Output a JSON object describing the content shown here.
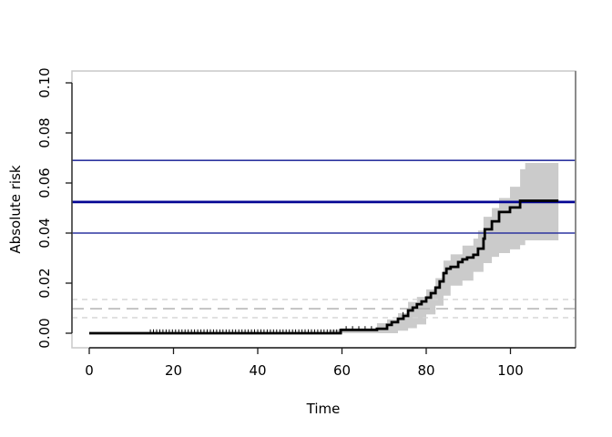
{
  "chart_data": {
    "type": "line",
    "subtype": "step-survival-curve-with-confidence-band",
    "title": "",
    "xlabel": "Time",
    "ylabel": "Absolute risk",
    "xlim": [
      -4.5,
      115.5
    ],
    "ylim": [
      -0.006,
      0.105
    ],
    "grid": "off",
    "x_ticks": [
      {
        "label": "0",
        "value": 0
      },
      {
        "label": "20",
        "value": 20
      },
      {
        "label": "40",
        "value": 40
      },
      {
        "label": "60",
        "value": 60
      },
      {
        "label": "80",
        "value": 80
      },
      {
        "label": "100",
        "value": 100
      }
    ],
    "y_ticks": [
      {
        "label": "0.00",
        "value": 0.0
      },
      {
        "label": "0.02",
        "value": 0.02
      },
      {
        "label": "0.04",
        "value": 0.04
      },
      {
        "label": "0.06",
        "value": 0.06
      },
      {
        "label": "0.08",
        "value": 0.08
      },
      {
        "label": "0.10",
        "value": 0.1
      }
    ],
    "curve": {
      "name": "absolute-risk-step-curve",
      "color": "#000000",
      "width": 2.8,
      "points": [
        [
          0,
          0
        ],
        [
          59.7,
          0.0013
        ],
        [
          68.3,
          0.0018
        ],
        [
          70.7,
          0.0033
        ],
        [
          71.8,
          0.0044
        ],
        [
          73.3,
          0.0058
        ],
        [
          74.6,
          0.0069
        ],
        [
          75.7,
          0.0091
        ],
        [
          76.8,
          0.0102
        ],
        [
          77.8,
          0.0116
        ],
        [
          78.9,
          0.0127
        ],
        [
          80.0,
          0.0142
        ],
        [
          81.1,
          0.016
        ],
        [
          82.2,
          0.0182
        ],
        [
          83.2,
          0.0207
        ],
        [
          84.1,
          0.024
        ],
        [
          84.8,
          0.0258
        ],
        [
          85.8,
          0.0265
        ],
        [
          87.6,
          0.0284
        ],
        [
          88.6,
          0.0295
        ],
        [
          89.7,
          0.0302
        ],
        [
          91.2,
          0.0313
        ],
        [
          92.3,
          0.0338
        ],
        [
          93.6,
          0.0378
        ],
        [
          93.9,
          0.0415
        ],
        [
          95.6,
          0.0447
        ],
        [
          97.3,
          0.0484
        ],
        [
          99.9,
          0.0502
        ],
        [
          102.3,
          0.0529
        ],
        [
          111.4,
          0.0529
        ]
      ]
    },
    "confidence_band": {
      "name": "pointwise-confidence-band",
      "color": "#CBCBCB",
      "upper": [
        [
          57,
          0.0013
        ],
        [
          59.7,
          0.002
        ],
        [
          68.3,
          0.004
        ],
        [
          70.7,
          0.0055
        ],
        [
          73.3,
          0.008
        ],
        [
          75.7,
          0.0125
        ],
        [
          77.8,
          0.0145
        ],
        [
          80,
          0.0175
        ],
        [
          82.2,
          0.022
        ],
        [
          84.1,
          0.029
        ],
        [
          85.8,
          0.0315
        ],
        [
          88.6,
          0.035
        ],
        [
          91.2,
          0.0378
        ],
        [
          92.3,
          0.041
        ],
        [
          93.6,
          0.0465
        ],
        [
          95.6,
          0.05
        ],
        [
          97.3,
          0.054
        ],
        [
          99.9,
          0.0585
        ],
        [
          102.3,
          0.0655
        ],
        [
          103.5,
          0.068
        ],
        [
          111.4,
          0.068
        ]
      ],
      "lower": [
        [
          57,
          0
        ],
        [
          71,
          0
        ],
        [
          73.3,
          0.001
        ],
        [
          75.7,
          0.002
        ],
        [
          77.8,
          0.0035
        ],
        [
          80,
          0.0075
        ],
        [
          82.2,
          0.011
        ],
        [
          84.1,
          0.015
        ],
        [
          85.8,
          0.019
        ],
        [
          88.6,
          0.021
        ],
        [
          91.2,
          0.0245
        ],
        [
          93.6,
          0.028
        ],
        [
          95.6,
          0.0305
        ],
        [
          97.3,
          0.032
        ],
        [
          99.9,
          0.0335
        ],
        [
          102.3,
          0.0352
        ],
        [
          103.5,
          0.0371
        ],
        [
          111.4,
          0.0371
        ]
      ]
    },
    "solid_hlines": [
      {
        "name": "reference-upper-line",
        "y": 0.069,
        "color": "#2D35A0",
        "width": 1.6
      },
      {
        "name": "reference-estimate-line",
        "y": 0.0524,
        "color": "#050694",
        "width": 2.8
      },
      {
        "name": "reference-lower-line",
        "y": 0.04,
        "color": "#2D35A0",
        "width": 1.6
      }
    ],
    "dashed_hlines": [
      {
        "name": "dashed-upper-line",
        "y": 0.0135,
        "color": "#D4D4D4",
        "width": 1.4,
        "dash": "6 5"
      },
      {
        "name": "dashed-middle-line",
        "y": 0.0098,
        "color": "#ACACAC",
        "width": 1.4,
        "dash": "13 7"
      },
      {
        "name": "dashed-lower-line",
        "y": 0.0062,
        "color": "#D4D4D4",
        "width": 1.4,
        "dash": "6 5"
      }
    ],
    "censor_times_zero": [
      14.5,
      15.25,
      16,
      16.75,
      17.5,
      18.25,
      19,
      19.75,
      20.5,
      21.25,
      22,
      22.75,
      23.5,
      24.25,
      25,
      25.75,
      26.5,
      27.25,
      28,
      28.75,
      29.5,
      30.25,
      31,
      31.75,
      32.5,
      33.25,
      34,
      34.75,
      35.5,
      36.25,
      37,
      37.75,
      38.5,
      39.25,
      40,
      40.75,
      41.5,
      42.25,
      43,
      43.75,
      44.5,
      45.25,
      46,
      46.75,
      47.5,
      48.25,
      49,
      49.75,
      50.5,
      51.25,
      52,
      52.75,
      53.5,
      54.25,
      55,
      55.75,
      56.5,
      57.25,
      58,
      58.75,
      59.5
    ],
    "censor_marks": [
      [
        61,
        0.0013
      ],
      [
        62.5,
        0.0013
      ],
      [
        64,
        0.0013
      ],
      [
        65.5,
        0.0013
      ],
      [
        67,
        0.0013
      ],
      [
        74.5,
        0.0069
      ]
    ],
    "frame": {
      "box_color": "#C9C9C9",
      "right_edge_color": "#6F6F6F",
      "axis_color": "#1a1a1a",
      "tick_label_color": "#000000"
    }
  }
}
